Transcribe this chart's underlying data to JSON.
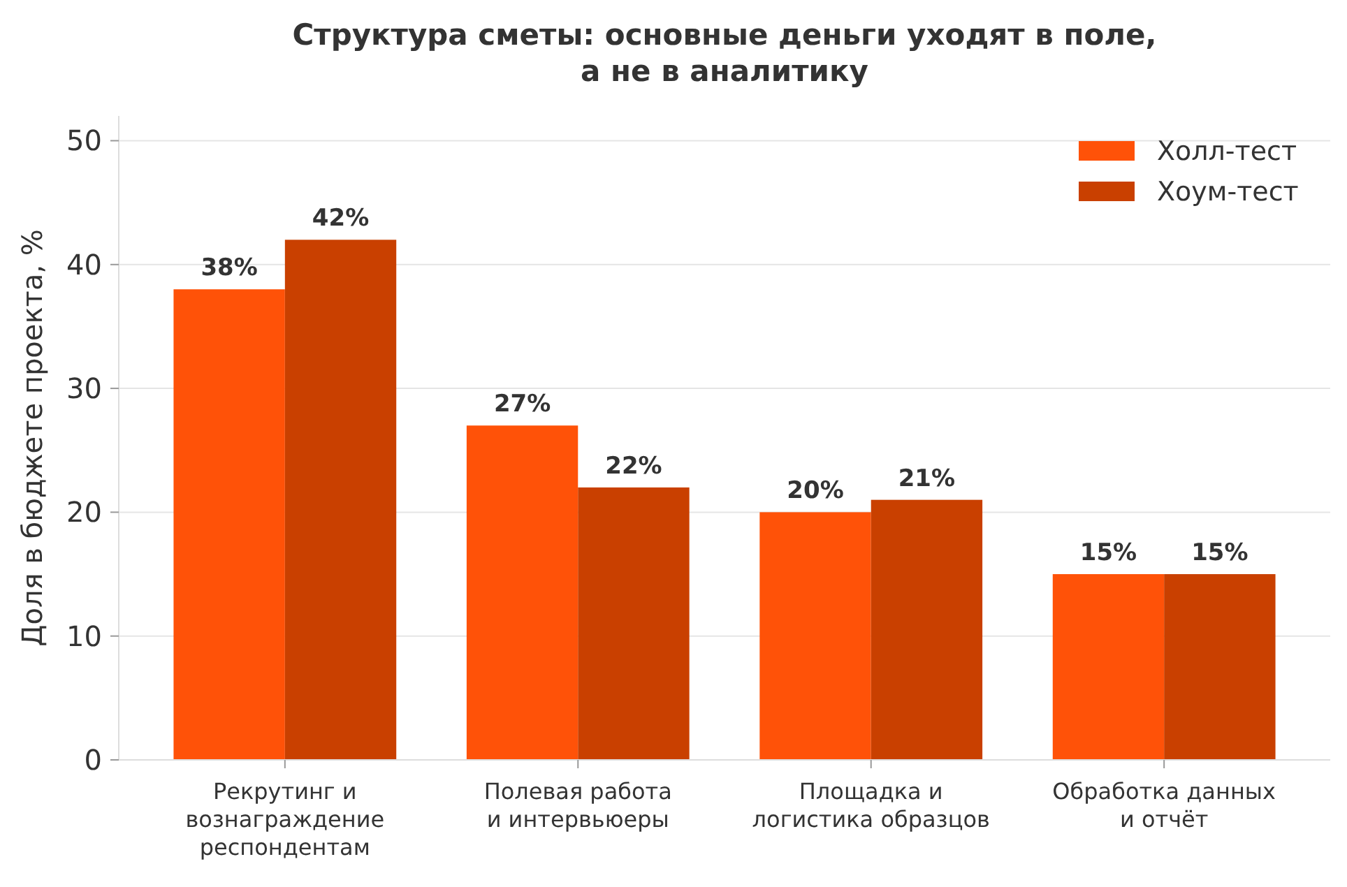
{
  "chart_data": {
    "type": "bar",
    "title": "Структура сметы: основные деньги уходят в поле,\nа не в аналитику",
    "ylabel": "Доля в бюджете проекта, %",
    "categories": [
      "Рекрутинг и\nвознаграждение\nреспондентам",
      "Полевая работа\nи интервьюеры",
      "Площадка и\nлогистика образцов",
      "Обработка данных\nи отчёт"
    ],
    "series": [
      {
        "name": "Холл-тест",
        "color": "#ff5208",
        "values": [
          38,
          27,
          20,
          15
        ],
        "value_labels": [
          "38%",
          "27%",
          "20%",
          "15%"
        ]
      },
      {
        "name": "Хоум-тест",
        "color": "#c94000",
        "values": [
          42,
          22,
          21,
          15
        ],
        "value_labels": [
          "42%",
          "22%",
          "21%",
          "15%"
        ]
      }
    ],
    "ylim": [
      0,
      52
    ],
    "yticks": [
      0,
      10,
      20,
      30,
      40,
      50
    ],
    "grid": "y",
    "legend": "top right"
  }
}
